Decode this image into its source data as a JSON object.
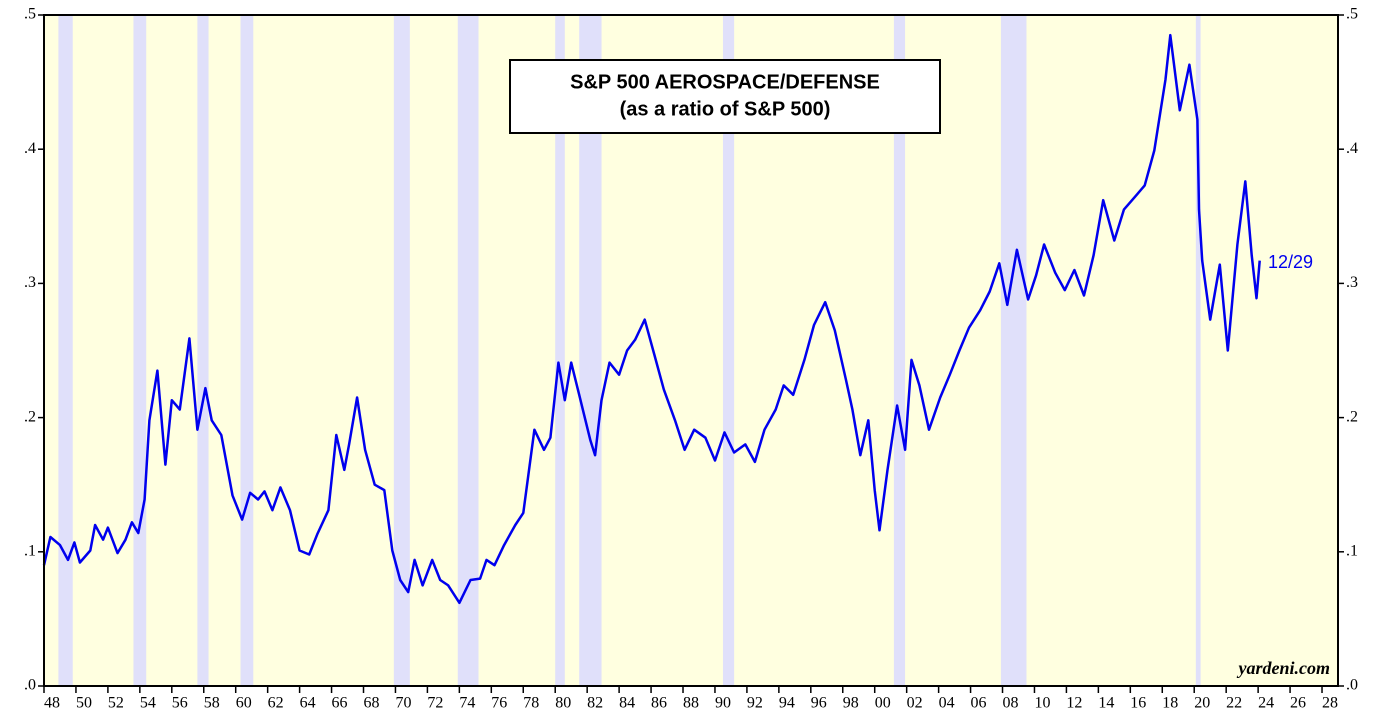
{
  "chart_data": {
    "type": "line",
    "title": "S&P 500 AEROSPACE/DEFENSE",
    "subtitle": "(as a ratio of S&P 500)",
    "annotations": [
      "12/29",
      "yardeni.com"
    ],
    "xlim": [
      1948,
      2029
    ],
    "ylim": [
      0,
      0.5
    ],
    "yticks": [
      {
        "value": 0,
        "label": ".0"
      },
      {
        "value": 0.1,
        "label": ".1"
      },
      {
        "value": 0.2,
        "label": ".2"
      },
      {
        "value": 0.3,
        "label": ".3"
      },
      {
        "value": 0.4,
        "label": ".4"
      },
      {
        "value": 0.5,
        "label": ".5"
      }
    ],
    "xticks": [
      {
        "value": 1948,
        "label": "48"
      },
      {
        "value": 1950,
        "label": "50"
      },
      {
        "value": 1952,
        "label": "52"
      },
      {
        "value": 1954,
        "label": "54"
      },
      {
        "value": 1956,
        "label": "56"
      },
      {
        "value": 1958,
        "label": "58"
      },
      {
        "value": 1960,
        "label": "60"
      },
      {
        "value": 1962,
        "label": "62"
      },
      {
        "value": 1964,
        "label": "64"
      },
      {
        "value": 1966,
        "label": "66"
      },
      {
        "value": 1968,
        "label": "68"
      },
      {
        "value": 1970,
        "label": "70"
      },
      {
        "value": 1972,
        "label": "72"
      },
      {
        "value": 1974,
        "label": "74"
      },
      {
        "value": 1976,
        "label": "76"
      },
      {
        "value": 1978,
        "label": "78"
      },
      {
        "value": 1980,
        "label": "80"
      },
      {
        "value": 1982,
        "label": "82"
      },
      {
        "value": 1984,
        "label": "84"
      },
      {
        "value": 1986,
        "label": "86"
      },
      {
        "value": 1988,
        "label": "88"
      },
      {
        "value": 1990,
        "label": "90"
      },
      {
        "value": 1992,
        "label": "92"
      },
      {
        "value": 1994,
        "label": "94"
      },
      {
        "value": 1996,
        "label": "96"
      },
      {
        "value": 1998,
        "label": "98"
      },
      {
        "value": 2000,
        "label": "00"
      },
      {
        "value": 2002,
        "label": "02"
      },
      {
        "value": 2004,
        "label": "04"
      },
      {
        "value": 2006,
        "label": "06"
      },
      {
        "value": 2008,
        "label": "08"
      },
      {
        "value": 2010,
        "label": "10"
      },
      {
        "value": 2012,
        "label": "12"
      },
      {
        "value": 2014,
        "label": "14"
      },
      {
        "value": 2016,
        "label": "16"
      },
      {
        "value": 2018,
        "label": "18"
      },
      {
        "value": 2020,
        "label": "20"
      },
      {
        "value": 2022,
        "label": "22"
      },
      {
        "value": 2024,
        "label": "24"
      },
      {
        "value": 2026,
        "label": "26"
      },
      {
        "value": 2028,
        "label": "28"
      }
    ],
    "background_color": "#ffffe0",
    "recession_color": "#e0e0fa",
    "recessions": [
      [
        1948.9,
        1949.8
      ],
      [
        1953.6,
        1954.4
      ],
      [
        1957.6,
        1958.3
      ],
      [
        1960.3,
        1961.1
      ],
      [
        1969.9,
        1970.9
      ],
      [
        1973.9,
        1975.2
      ],
      [
        1980.0,
        1980.6
      ],
      [
        1981.5,
        1982.9
      ],
      [
        1990.5,
        1991.2
      ],
      [
        2001.2,
        2001.9
      ],
      [
        2007.9,
        2009.5
      ],
      [
        2020.1,
        2020.4
      ]
    ],
    "series": [
      {
        "name": "S&P 500 Aerospace/Defense ratio",
        "color": "#0000ee",
        "x": [
          1948.0,
          1948.4,
          1949.0,
          1949.5,
          1949.9,
          1950.25,
          1950.9,
          1951.2,
          1951.7,
          1952.0,
          1952.6,
          1953.1,
          1953.5,
          1953.9,
          1954.3,
          1954.6,
          1955.1,
          1955.6,
          1956.0,
          1956.5,
          1957.1,
          1957.6,
          1958.1,
          1958.5,
          1959.1,
          1959.8,
          1960.4,
          1960.9,
          1961.4,
          1961.8,
          1962.3,
          1962.8,
          1963.4,
          1964.0,
          1964.6,
          1965.1,
          1965.8,
          1966.3,
          1966.8,
          1967.1,
          1967.6,
          1968.1,
          1968.7,
          1969.3,
          1969.8,
          1970.3,
          1970.8,
          1971.2,
          1971.7,
          1972.3,
          1972.8,
          1973.3,
          1974.0,
          1974.7,
          1975.3,
          1975.7,
          1976.2,
          1976.8,
          1977.5,
          1978.0,
          1978.7,
          1979.3,
          1979.7,
          1980.2,
          1980.6,
          1981.0,
          1981.5,
          1982.2,
          1982.5,
          1982.9,
          1983.4,
          1984.0,
          1984.5,
          1985.0,
          1985.6,
          1986.2,
          1986.8,
          1987.5,
          1988.1,
          1988.7,
          1989.4,
          1990.0,
          1990.6,
          1991.2,
          1991.9,
          1992.5,
          1993.1,
          1993.8,
          1994.3,
          1994.9,
          1995.6,
          1996.2,
          1996.9,
          1997.5,
          1998.2,
          1998.6,
          1999.1,
          1999.6,
          2000.0,
          2000.3,
          2000.8,
          2001.4,
          2001.9,
          2002.3,
          2002.8,
          2003.4,
          2004.1,
          2004.7,
          2005.3,
          2005.9,
          2006.6,
          2007.2,
          2007.8,
          2008.3,
          2008.9,
          2009.6,
          2010.1,
          2010.6,
          2011.3,
          2011.9,
          2012.5,
          2013.1,
          2013.7,
          2014.3,
          2015.0,
          2015.6,
          2016.4,
          2016.9,
          2017.5,
          2018.2,
          2018.5,
          2019.1,
          2019.7,
          2020.2,
          2020.3,
          2020.5,
          2021.0,
          2021.6,
          2022.1,
          2022.7,
          2023.2,
          2023.6,
          2023.9,
          2024.1
        ],
        "values": [
          0.09,
          0.111,
          0.105,
          0.094,
          0.107,
          0.092,
          0.101,
          0.12,
          0.109,
          0.118,
          0.099,
          0.109,
          0.122,
          0.114,
          0.139,
          0.198,
          0.235,
          0.165,
          0.213,
          0.206,
          0.259,
          0.191,
          0.222,
          0.198,
          0.187,
          0.142,
          0.124,
          0.144,
          0.139,
          0.145,
          0.131,
          0.148,
          0.131,
          0.101,
          0.098,
          0.113,
          0.131,
          0.187,
          0.161,
          0.18,
          0.215,
          0.176,
          0.15,
          0.146,
          0.101,
          0.079,
          0.07,
          0.094,
          0.075,
          0.094,
          0.079,
          0.075,
          0.062,
          0.079,
          0.08,
          0.094,
          0.09,
          0.105,
          0.12,
          0.129,
          0.191,
          0.176,
          0.185,
          0.241,
          0.213,
          0.241,
          0.217,
          0.183,
          0.172,
          0.213,
          0.241,
          0.232,
          0.25,
          0.258,
          0.273,
          0.247,
          0.221,
          0.198,
          0.176,
          0.191,
          0.185,
          0.168,
          0.189,
          0.174,
          0.18,
          0.167,
          0.191,
          0.206,
          0.224,
          0.217,
          0.243,
          0.269,
          0.286,
          0.265,
          0.228,
          0.206,
          0.172,
          0.198,
          0.146,
          0.116,
          0.161,
          0.209,
          0.176,
          0.243,
          0.224,
          0.191,
          0.215,
          0.232,
          0.25,
          0.267,
          0.28,
          0.294,
          0.315,
          0.284,
          0.325,
          0.288,
          0.306,
          0.329,
          0.308,
          0.295,
          0.31,
          0.291,
          0.321,
          0.362,
          0.332,
          0.355,
          0.366,
          0.373,
          0.399,
          0.452,
          0.485,
          0.429,
          0.463,
          0.422,
          0.355,
          0.317,
          0.273,
          0.314,
          0.25,
          0.329,
          0.376,
          0.321,
          0.289,
          0.317
        ]
      }
    ]
  }
}
